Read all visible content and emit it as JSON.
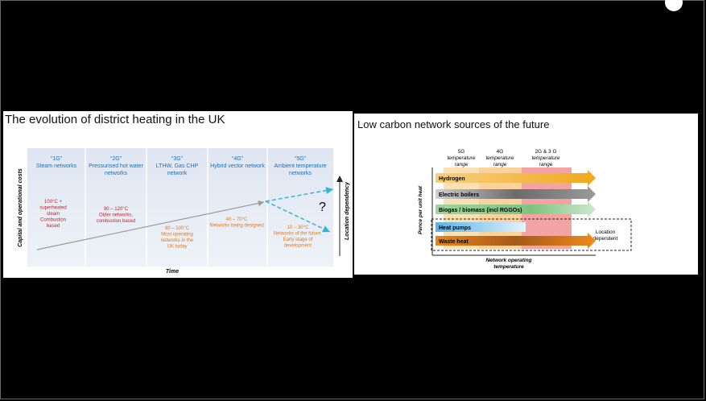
{
  "left_slide": {
    "title": "The evolution of district heating in the UK",
    "eras": [
      {
        "gen": "“1G”",
        "name1": "Steam networks",
        "name2": "",
        "detail": [
          "100°C +",
          "superheated",
          "steam",
          "Combustion",
          "based"
        ],
        "detail_color": "#c0262b"
      },
      {
        "gen": "“2G”",
        "name1": "Pressurised hot water",
        "name2": "networks",
        "detail": [
          "90 – 120°C",
          "Older networks,",
          "combustion based"
        ],
        "detail_color": "#c0262b"
      },
      {
        "gen": "“3G”",
        "name1": "LTHW, Gas CHP",
        "name2": "network",
        "detail": [
          "80 – 100°C",
          "Most operating",
          "networks in the",
          "UK today"
        ],
        "detail_color": "#e07a1f"
      },
      {
        "gen": "“4G”",
        "name1": "Hybrid vector network",
        "name2": "",
        "detail": [
          "40 – 70°C",
          "Networks being designed"
        ],
        "detail_color": "#e07a1f"
      },
      {
        "gen": "“5G”",
        "name1": "Ambient temperature",
        "name2": "networks",
        "detail": [
          "10 – 30°C",
          "Networks of the future.",
          "Early stage of",
          "development"
        ],
        "detail_color": "#e07a1f"
      }
    ],
    "y_label": "Capital and operational costs",
    "x_label": "Time",
    "right_label": "Location dependency",
    "question": "?",
    "header_color": "#1c6fb8",
    "arrow_color": "#36b3d9"
  },
  "right_slide": {
    "title": "Low carbon network sources of the future",
    "col_headers": [
      [
        "5G",
        "temperature",
        "range"
      ],
      [
        "4G",
        "temperature",
        "range"
      ],
      [
        "2G & 3 G",
        "temperature",
        "range"
      ]
    ],
    "sources": [
      {
        "label": "Hydrogen",
        "color": "#f0a81e"
      },
      {
        "label": "Electric boilers",
        "color": "#8a8a8a"
      },
      {
        "label": "Biogas / biomass (incl RGGOs)",
        "color": "#7ec47e"
      },
      {
        "label": "Heat pumps",
        "color": "#5ab4e8"
      },
      {
        "label": "Waste heat",
        "color": "#e8841a"
      }
    ],
    "location_note": [
      "Location",
      "dependent"
    ],
    "y_label": "Pence per unit heat",
    "x_label": [
      "Network operating",
      "temperature"
    ],
    "band_colors": {
      "g5": "#fbe0b4",
      "g4": "#fcd29c",
      "g23": "#f4a3a3"
    }
  }
}
